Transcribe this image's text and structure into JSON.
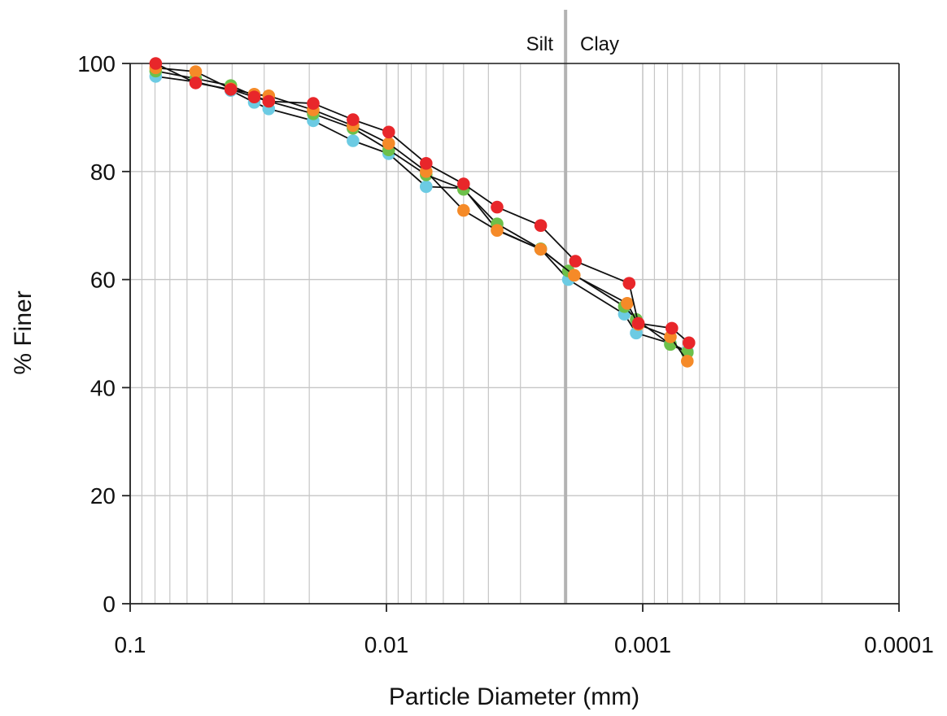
{
  "chart_data": {
    "type": "scatter",
    "xlabel": "Particle Diameter (mm)",
    "ylabel": "% Finer",
    "x_scale": "log",
    "x_reversed": true,
    "xlim": [
      0.1,
      0.0001
    ],
    "ylim": [
      0,
      100
    ],
    "grid": true,
    "legend": "none",
    "x_ticks": [
      {
        "value": 0.1,
        "label": "0.1"
      },
      {
        "value": 0.01,
        "label": "0.01"
      },
      {
        "value": 0.001,
        "label": "0.001"
      },
      {
        "value": 0.0001,
        "label": "0.0001"
      }
    ],
    "y_ticks": [
      {
        "value": 0,
        "label": "0"
      },
      {
        "value": 20,
        "label": "20"
      },
      {
        "value": 40,
        "label": "40"
      },
      {
        "value": 60,
        "label": "60"
      },
      {
        "value": 80,
        "label": "80"
      },
      {
        "value": 100,
        "label": "100"
      }
    ],
    "boundary": {
      "x": 0.002,
      "left_label": "Silt",
      "right_label": "Clay"
    },
    "series": [
      {
        "color": "#6ccbe3",
        "points": [
          [
            0.0795,
            97.6
          ],
          [
            0.0555,
            96.6
          ],
          [
            0.0405,
            95.0
          ],
          [
            0.0328,
            92.8
          ],
          [
            0.0288,
            91.6
          ],
          [
            0.0193,
            89.4
          ],
          [
            0.0135,
            85.7
          ],
          [
            0.0098,
            83.3
          ],
          [
            0.007,
            77.2
          ],
          [
            0.005,
            76.9
          ],
          [
            0.0037,
            69.2
          ],
          [
            0.0025,
            65.6
          ],
          [
            0.00195,
            60.0
          ],
          [
            0.00118,
            53.6
          ],
          [
            0.00106,
            50.1
          ],
          [
            0.00078,
            48.2
          ],
          [
            0.00067,
            46.7
          ]
        ]
      },
      {
        "color": "#6cc04a",
        "points": [
          [
            0.0795,
            98.6
          ],
          [
            0.0555,
            97.2
          ],
          [
            0.0405,
            95.9
          ],
          [
            0.0328,
            94.0
          ],
          [
            0.0288,
            93.0
          ],
          [
            0.0193,
            90.7
          ],
          [
            0.0135,
            88.0
          ],
          [
            0.0098,
            84.0
          ],
          [
            0.007,
            79.4
          ],
          [
            0.005,
            76.7
          ],
          [
            0.0037,
            70.3
          ],
          [
            0.0025,
            65.7
          ],
          [
            0.00195,
            61.6
          ],
          [
            0.00118,
            55.0
          ],
          [
            0.00106,
            52.6
          ],
          [
            0.00078,
            48.0
          ],
          [
            0.00067,
            46.5
          ]
        ]
      },
      {
        "color": "#f58a28",
        "points": [
          [
            0.0795,
            99.2
          ],
          [
            0.0555,
            98.5
          ],
          [
            0.0405,
            95.3
          ],
          [
            0.0328,
            94.3
          ],
          [
            0.0288,
            94.0
          ],
          [
            0.0193,
            91.4
          ],
          [
            0.0135,
            88.5
          ],
          [
            0.0098,
            85.2
          ],
          [
            0.007,
            80.0
          ],
          [
            0.005,
            72.8
          ],
          [
            0.0037,
            69.1
          ],
          [
            0.0025,
            65.6
          ],
          [
            0.00185,
            60.8
          ],
          [
            0.00115,
            55.6
          ],
          [
            0.00104,
            51.7
          ],
          [
            0.00078,
            49.4
          ],
          [
            0.00067,
            44.9
          ]
        ]
      },
      {
        "color": "#e8262a",
        "points": [
          [
            0.0795,
            100.0
          ],
          [
            0.0555,
            96.4
          ],
          [
            0.0405,
            95.2
          ],
          [
            0.0328,
            93.8
          ],
          [
            0.0288,
            93.0
          ],
          [
            0.0193,
            92.6
          ],
          [
            0.0135,
            89.6
          ],
          [
            0.0098,
            87.3
          ],
          [
            0.007,
            81.5
          ],
          [
            0.005,
            77.7
          ],
          [
            0.0037,
            73.4
          ],
          [
            0.0025,
            70.0
          ],
          [
            0.00183,
            63.4
          ],
          [
            0.00113,
            59.3
          ],
          [
            0.00104,
            51.9
          ],
          [
            0.00077,
            51.0
          ],
          [
            0.00066,
            48.3
          ]
        ]
      }
    ]
  }
}
